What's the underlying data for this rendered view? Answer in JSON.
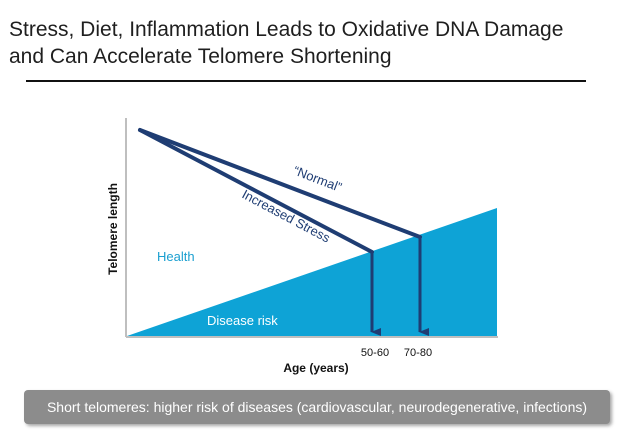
{
  "slide": {
    "title_line1": "Stress, Diet, Inflammation Leads to Oxidative DNA Damage",
    "title_line2": "and Can Accelerate Telomere Shortening"
  },
  "diagram": {
    "y_axis_label": "Telomere length",
    "x_axis_label": "Age (years)",
    "health_label": "Health",
    "disease_label": "Disease risk",
    "normal_label": "“Normal”",
    "stress_label": "Increased Stress",
    "marker_early": "50-60",
    "marker_late": "70-80",
    "colors": {
      "line": "#1f3d73",
      "disease_fill": "#0ea3d6",
      "health_text": "#1a9fd0",
      "axis": "#bfbfbf"
    }
  },
  "caption": {
    "text": "Short telomeres: higher risk of diseases (cardiovascular, neurodegenerative, infections)"
  }
}
